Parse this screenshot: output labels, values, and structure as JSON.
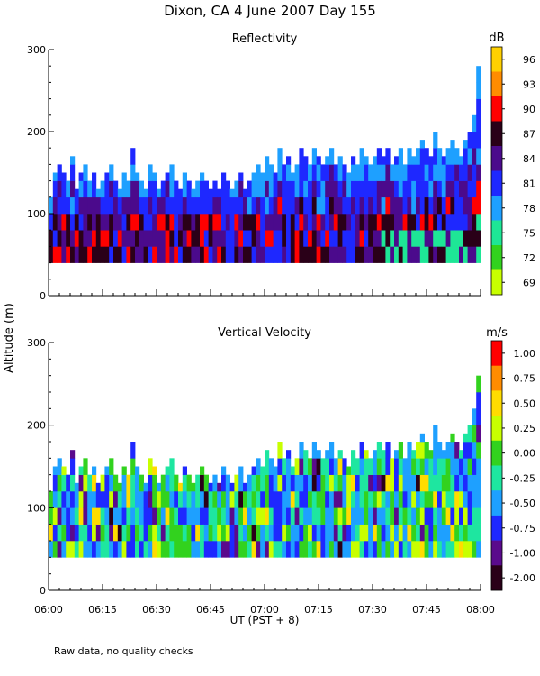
{
  "figure": {
    "title": "Dixon, CA  4 June 2007  Day 155",
    "shared_ylabel": "Altitude (m)",
    "xlabel": "UT  (PST + 8)",
    "footnote": "Raw data, no quality checks",
    "x_ticks": [
      "06:00",
      "06:15",
      "06:30",
      "06:45",
      "07:00",
      "07:15",
      "07:30",
      "07:45",
      "08:00"
    ]
  },
  "chart_data": [
    {
      "type": "heatmap",
      "title": "Reflectivity",
      "x_range_hours": [
        6.0,
        8.0
      ],
      "ylim": [
        0,
        300
      ],
      "y_ticks": [
        "0",
        "100",
        "200",
        "300"
      ],
      "colorbar_unit": "dB",
      "colorbar_labels": [
        "96",
        "93",
        "90",
        "87",
        "84",
        "81",
        "78",
        "75",
        "72",
        "69"
      ],
      "colorbar_colors": [
        "#ffd000",
        "#ff8c00",
        "#ff0000",
        "#2a0018",
        "#4b0a8c",
        "#1e28ff",
        "#1ea0ff",
        "#1ee696",
        "#32d21e",
        "#c8ff00"
      ],
      "column_tops_m": [
        120,
        150,
        160,
        150,
        140,
        170,
        130,
        150,
        160,
        140,
        150,
        130,
        140,
        150,
        160,
        140,
        130,
        150,
        140,
        180,
        150,
        140,
        130,
        160,
        150,
        130,
        140,
        150,
        160,
        140,
        130,
        150,
        140,
        130,
        140,
        150,
        140,
        130,
        140,
        130,
        150,
        140,
        130,
        140,
        150,
        130,
        140,
        150,
        160,
        150,
        170,
        160,
        150,
        180,
        160,
        170,
        150,
        160,
        180,
        170,
        160,
        180,
        170,
        160,
        170,
        180,
        160,
        170,
        160,
        150,
        170,
        160,
        180,
        170,
        160,
        170,
        180,
        170,
        180,
        160,
        170,
        180,
        160,
        180,
        170,
        180,
        190,
        180,
        170,
        200,
        180,
        170,
        180,
        190,
        180,
        170,
        190,
        200,
        220,
        280
      ],
      "base_altitude_m": 40
    },
    {
      "type": "heatmap",
      "title": "Vertical Velocity",
      "x_range_hours": [
        6.0,
        8.0
      ],
      "ylim": [
        0,
        300
      ],
      "y_ticks": [
        "0",
        "100",
        "200",
        "300"
      ],
      "colorbar_unit": "m/s",
      "colorbar_labels": [
        "1.00",
        "0.75",
        "0.50",
        "0.25",
        "0.00",
        "-0.25",
        "-0.50",
        "-0.75",
        "-1.00",
        "-2.00"
      ],
      "colorbar_colors": [
        "#ff0000",
        "#ff8c00",
        "#ffdc00",
        "#c8ff00",
        "#32d21e",
        "#1ee6a0",
        "#1ea0ff",
        "#1e28ff",
        "#5a0a8c",
        "#2a0018"
      ],
      "column_tops_m": [
        120,
        150,
        160,
        150,
        140,
        170,
        130,
        150,
        160,
        140,
        150,
        130,
        140,
        150,
        160,
        140,
        130,
        150,
        140,
        180,
        150,
        140,
        130,
        160,
        150,
        130,
        140,
        150,
        160,
        140,
        130,
        150,
        140,
        130,
        140,
        150,
        140,
        130,
        140,
        130,
        150,
        140,
        130,
        140,
        150,
        130,
        140,
        150,
        160,
        150,
        170,
        160,
        150,
        180,
        160,
        170,
        150,
        160,
        180,
        170,
        160,
        180,
        170,
        160,
        170,
        180,
        160,
        170,
        160,
        150,
        170,
        160,
        180,
        170,
        160,
        170,
        180,
        170,
        180,
        160,
        170,
        180,
        160,
        180,
        170,
        180,
        190,
        180,
        170,
        200,
        180,
        170,
        180,
        190,
        180,
        170,
        190,
        200,
        220,
        260
      ],
      "base_altitude_m": 40
    }
  ]
}
